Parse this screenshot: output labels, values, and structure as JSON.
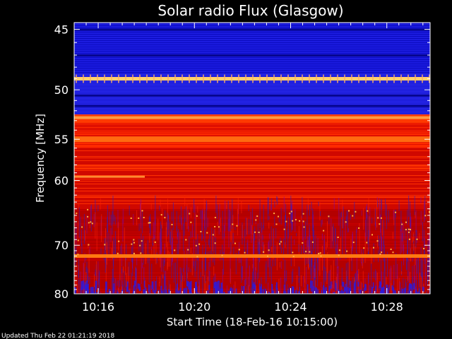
{
  "chart_data": {
    "type": "heatmap",
    "title": "Solar radio Flux (Glasgow)",
    "xlabel": "Start Time (18-Feb-16 10:15:00)",
    "ylabel": "Frequency [MHz]",
    "x_ticks": [
      "10:16",
      "10:20",
      "10:24",
      "10:28"
    ],
    "x_tick_minutes": [
      16,
      20,
      24,
      28
    ],
    "x_range_minutes": [
      15,
      29.8
    ],
    "y_ticks": [
      45,
      50,
      55,
      60,
      70,
      80
    ],
    "y_range": [
      44.5,
      80
    ],
    "y_scale": "reciprocal",
    "colormap": [
      "#1a1ad8",
      "#6a0fa0",
      "#c00000",
      "#ff2a00",
      "#ff7a00",
      "#ffd070"
    ],
    "bright_bands_mhz": [
      49,
      52.7,
      55,
      59.5,
      72
    ],
    "dark_bands_mhz": [
      45,
      47,
      50.5,
      51.5
    ],
    "grid": false
  },
  "footer": {
    "updated": "Updated Thu Feb 22 01:21:19 2018"
  },
  "colors": {
    "background": "#000000",
    "text": "#ffffff"
  }
}
